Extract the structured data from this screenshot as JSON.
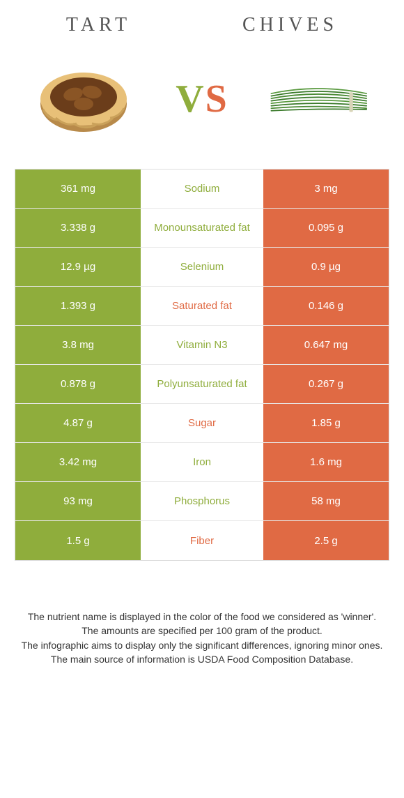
{
  "header": {
    "left": "Tart",
    "right": "Chives"
  },
  "vs": {
    "v": "V",
    "s": "S"
  },
  "colors": {
    "green": "#8fad3c",
    "orange": "#e06a44",
    "mid_green_text": "#8fad3c",
    "mid_orange_text": "#e06a44"
  },
  "rows": [
    {
      "left": "361 mg",
      "mid": "Sodium",
      "right": "3 mg",
      "winner": "left"
    },
    {
      "left": "3.338 g",
      "mid": "Monounsaturated fat",
      "right": "0.095 g",
      "winner": "left"
    },
    {
      "left": "12.9 µg",
      "mid": "Selenium",
      "right": "0.9 µg",
      "winner": "left"
    },
    {
      "left": "1.393 g",
      "mid": "Saturated fat",
      "right": "0.146 g",
      "winner": "right"
    },
    {
      "left": "3.8 mg",
      "mid": "Vitamin N3",
      "right": "0.647 mg",
      "winner": "left"
    },
    {
      "left": "0.878 g",
      "mid": "Polyunsaturated fat",
      "right": "0.267 g",
      "winner": "left"
    },
    {
      "left": "4.87 g",
      "mid": "Sugar",
      "right": "1.85 g",
      "winner": "right"
    },
    {
      "left": "3.42 mg",
      "mid": "Iron",
      "right": "1.6 mg",
      "winner": "left"
    },
    {
      "left": "93 mg",
      "mid": "Phosphorus",
      "right": "58 mg",
      "winner": "left"
    },
    {
      "left": "1.5 g",
      "mid": "Fiber",
      "right": "2.5 g",
      "winner": "right"
    }
  ],
  "footer": {
    "l1": "The nutrient name is displayed in the color of the food we considered as 'winner'.",
    "l2": "The amounts are specified per 100 gram of the product.",
    "l3": "The infographic aims to display only the significant differences, ignoring minor ones.",
    "l4": "The main source of information is USDA Food Composition Database."
  }
}
